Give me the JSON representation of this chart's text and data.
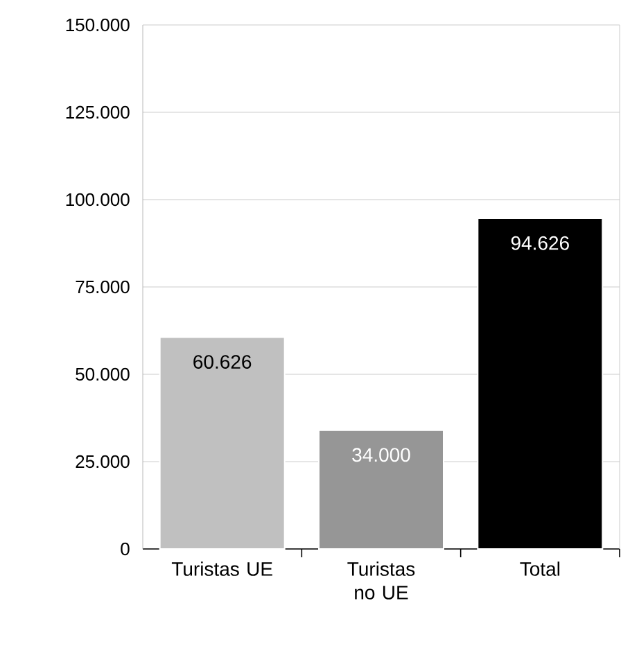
{
  "chart_data": {
    "type": "bar",
    "categories": [
      "Turistas UE",
      "Turistas no UE",
      "Total"
    ],
    "values": [
      60626,
      34000,
      94626
    ],
    "colors": [
      "#c0c0c0",
      "#969696",
      "#000000"
    ],
    "value_labels": [
      "60.626",
      "34.000",
      "94.626"
    ],
    "ylim": [
      0,
      150000
    ],
    "yticks": [
      0,
      {
        "value": 25000,
        "label": "25.000"
      },
      {
        "value": 50000,
        "label": "50.000"
      },
      {
        "value": 75000,
        "label": "75.000"
      },
      {
        "value": 100000,
        "label": "100.000"
      },
      {
        "value": 125000,
        "label": "125.000"
      },
      {
        "value": 150000,
        "label": "150.000"
      }
    ],
    "grid": "y"
  }
}
